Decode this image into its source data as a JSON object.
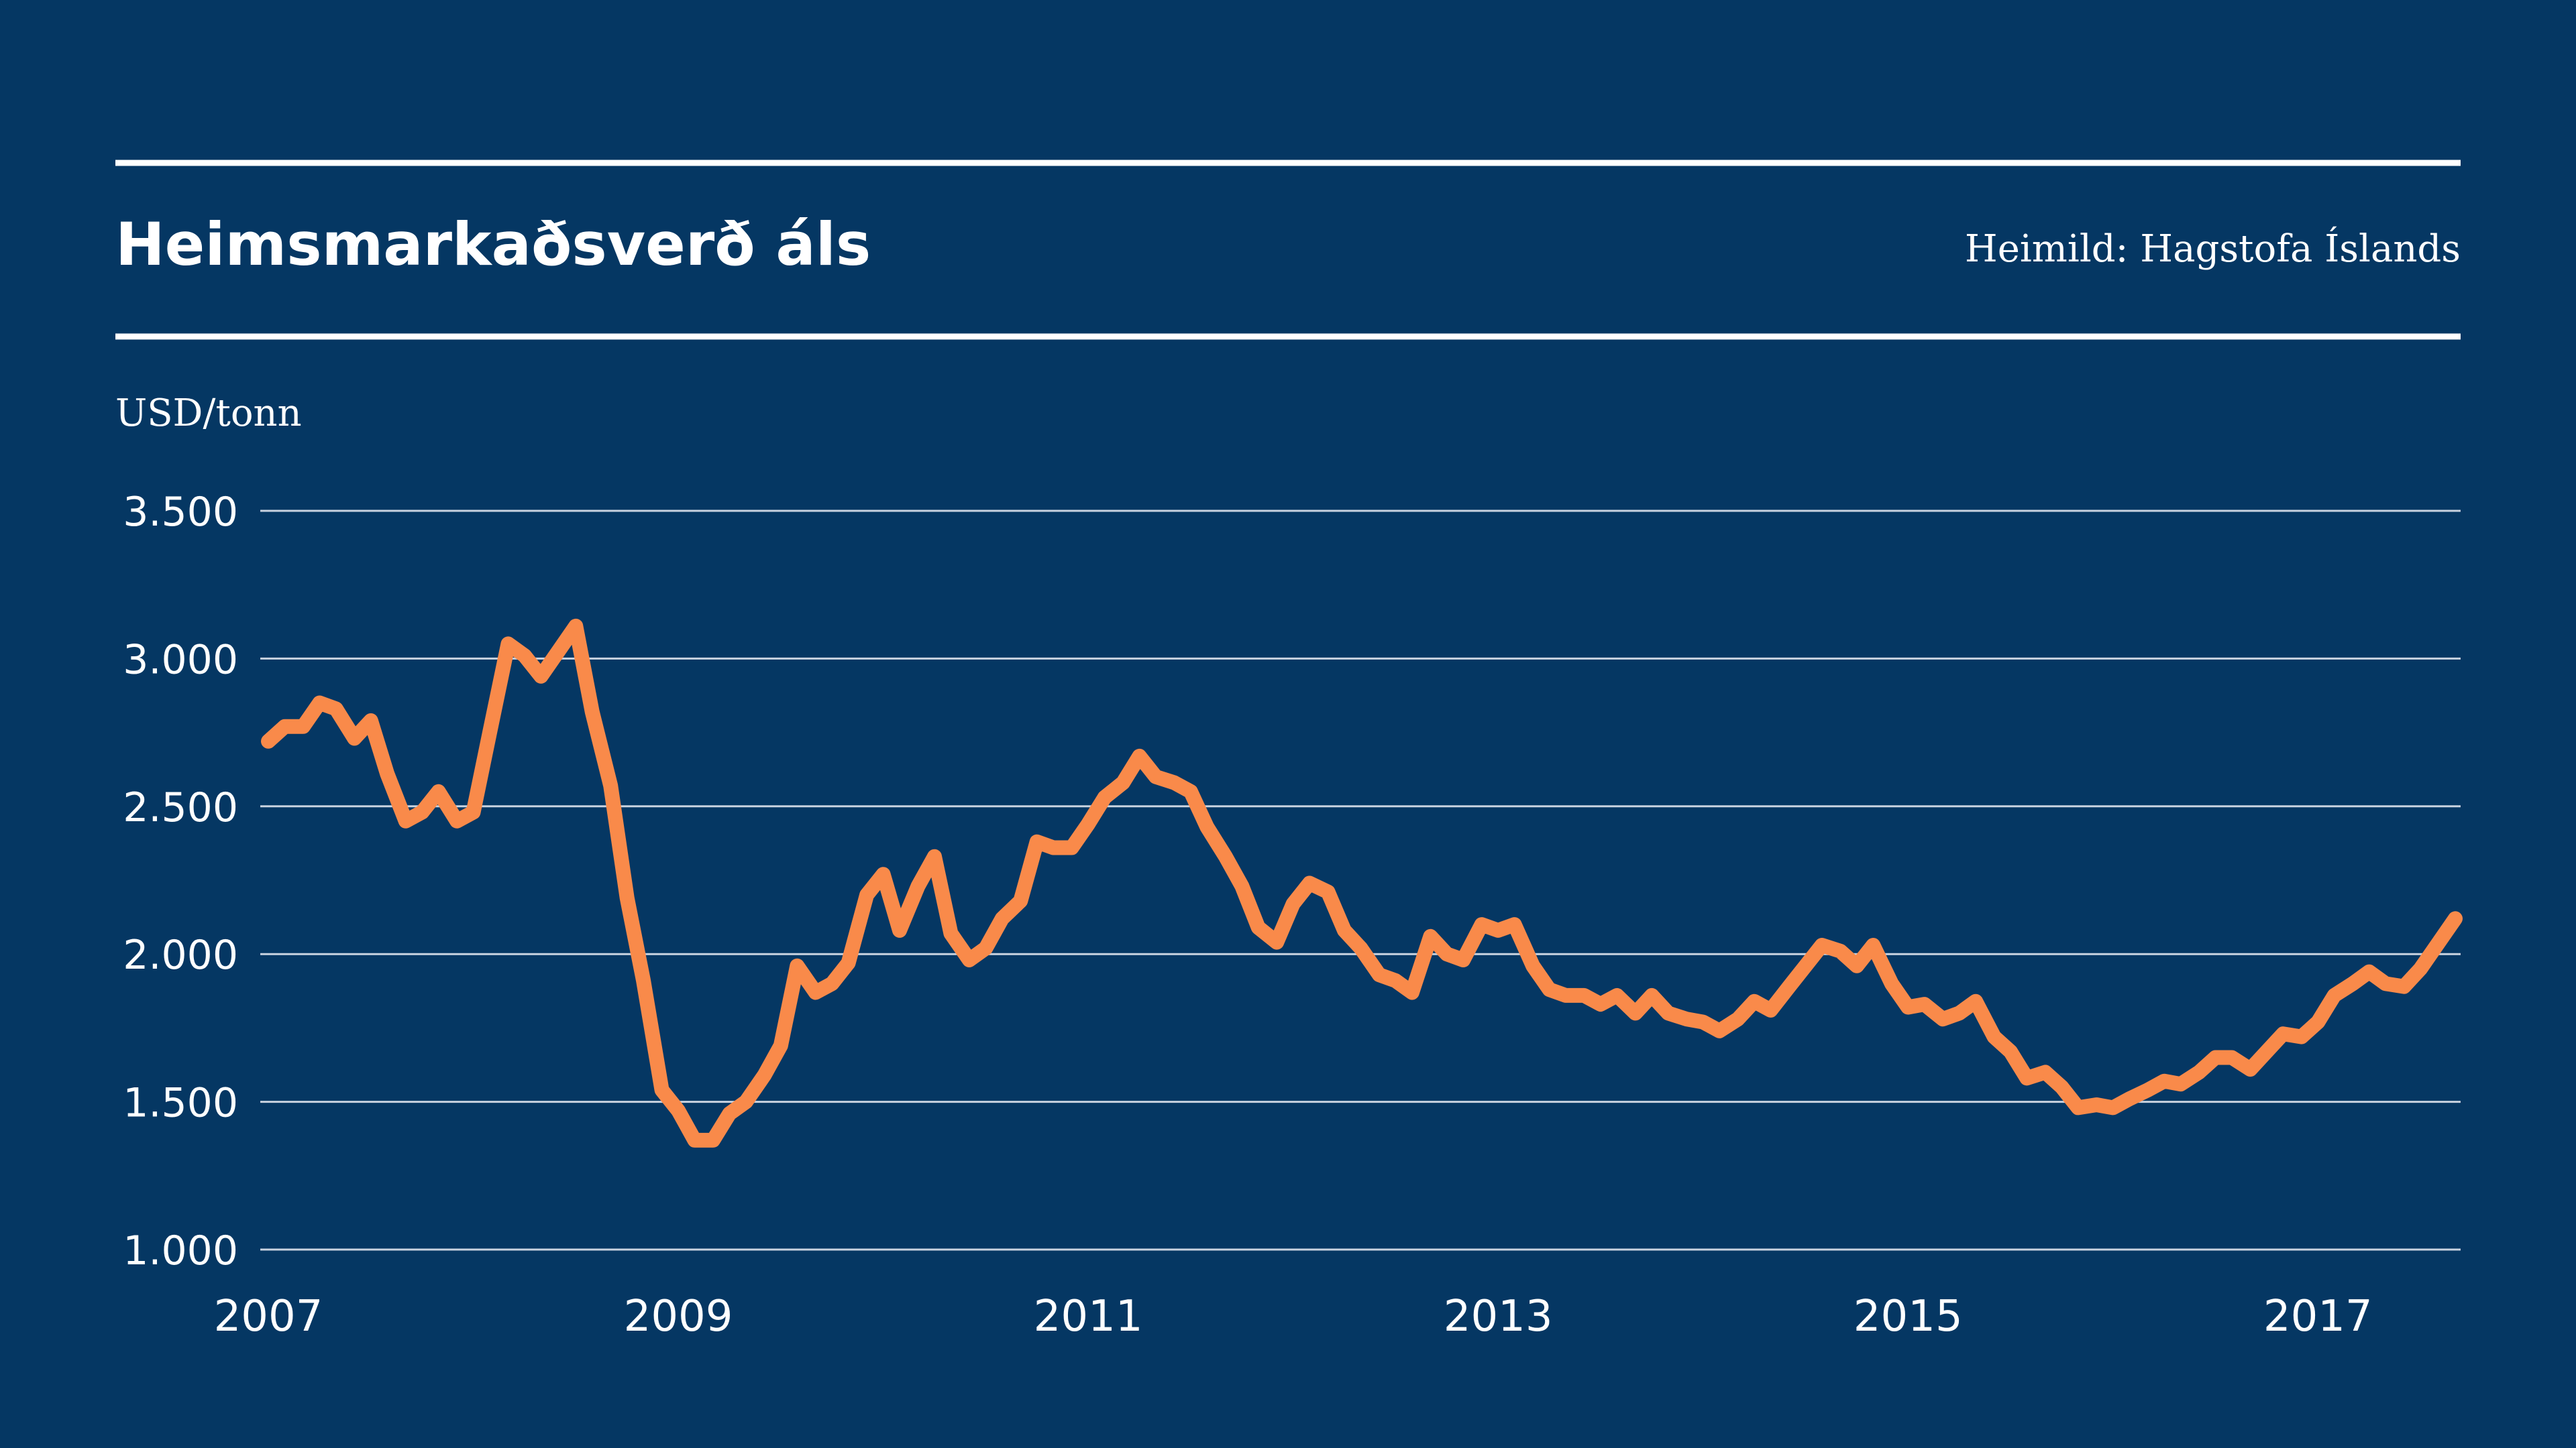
{
  "header": {
    "title": "Heimsmarkaðsverð áls",
    "source": "Heimild: Hagstofa Íslands"
  },
  "colors": {
    "background": "#053763",
    "text": "#ffffff",
    "rule": "#ffffff",
    "grid": "#c9d3e0",
    "line": "#f98a4a"
  },
  "chart_data": {
    "type": "line",
    "title": "Heimsmarkaðsverð áls",
    "source": "Heimild: Hagstofa Íslands",
    "unit_label": "USD/tonn",
    "xlabel": "",
    "ylabel": "",
    "grid": true,
    "legend": "none",
    "xlim": [
      2007.0,
      2017.67
    ],
    "ylim": [
      1000,
      3500
    ],
    "x_ticks": [
      2007,
      2009,
      2011,
      2013,
      2015,
      2017
    ],
    "x_tick_labels": [
      "2007",
      "2009",
      "2011",
      "2013",
      "2015",
      "2017"
    ],
    "y_ticks": [
      1000,
      1500,
      2000,
      2500,
      3000,
      3500
    ],
    "y_tick_labels": [
      "1.000",
      "1.500",
      "2.000",
      "2.500",
      "3.000",
      "3.500"
    ],
    "series": [
      {
        "name": "",
        "x": [
          2007.0,
          2007.08,
          2007.17,
          2007.25,
          2007.33,
          2007.42,
          2007.5,
          2007.58,
          2007.67,
          2007.75,
          2007.83,
          2007.92,
          2008.0,
          2008.08,
          2008.17,
          2008.25,
          2008.33,
          2008.42,
          2008.5,
          2008.58,
          2008.67,
          2008.75,
          2008.83,
          2008.92,
          2009.0,
          2009.08,
          2009.17,
          2009.25,
          2009.33,
          2009.42,
          2009.5,
          2009.58,
          2009.67,
          2009.75,
          2009.83,
          2009.92,
          2010.0,
          2010.08,
          2010.17,
          2010.25,
          2010.33,
          2010.42,
          2010.5,
          2010.58,
          2010.67,
          2010.75,
          2010.83,
          2010.92,
          2011.0,
          2011.08,
          2011.17,
          2011.25,
          2011.33,
          2011.42,
          2011.5,
          2011.58,
          2011.67,
          2011.75,
          2011.83,
          2011.92,
          2012.0,
          2012.08,
          2012.17,
          2012.25,
          2012.33,
          2012.42,
          2012.5,
          2012.58,
          2012.67,
          2012.75,
          2012.83,
          2012.92,
          2013.0,
          2013.08,
          2013.17,
          2013.25,
          2013.33,
          2013.42,
          2013.5,
          2013.58,
          2013.67,
          2013.75,
          2013.83,
          2013.92,
          2014.0,
          2014.08,
          2014.17,
          2014.25,
          2014.33,
          2014.42,
          2014.5,
          2014.58,
          2014.67,
          2014.75,
          2014.83,
          2014.92,
          2015.0,
          2015.08,
          2015.17,
          2015.25,
          2015.33,
          2015.42,
          2015.5,
          2015.58,
          2015.67,
          2015.75,
          2015.83,
          2015.92,
          2016.0,
          2016.08,
          2016.17,
          2016.25,
          2016.33,
          2016.42,
          2016.5,
          2016.58,
          2016.67,
          2016.75,
          2016.83,
          2016.92,
          2017.0,
          2017.08,
          2017.17,
          2017.25,
          2017.33,
          2017.42,
          2017.5,
          2017.58,
          2017.67
        ],
        "y": [
          2720,
          2770,
          2770,
          2850,
          2830,
          2730,
          2790,
          2610,
          2450,
          2480,
          2550,
          2450,
          2480,
          2750,
          3050,
          3010,
          2940,
          3030,
          3110,
          2820,
          2570,
          2190,
          1910,
          1540,
          1470,
          1370,
          1370,
          1460,
          1500,
          1590,
          1690,
          1960,
          1870,
          1900,
          1970,
          2200,
          2270,
          2080,
          2230,
          2330,
          2070,
          1980,
          2020,
          2120,
          2180,
          2380,
          2360,
          2360,
          2440,
          2530,
          2580,
          2670,
          2600,
          2580,
          2550,
          2430,
          2330,
          2230,
          2090,
          2040,
          2170,
          2240,
          2210,
          2080,
          2020,
          1930,
          1910,
          1870,
          2060,
          2000,
          1980,
          2100,
          2080,
          2100,
          1960,
          1880,
          1860,
          1860,
          1830,
          1860,
          1800,
          1860,
          1800,
          1780,
          1770,
          1740,
          1780,
          1840,
          1810,
          1890,
          1960,
          2030,
          2010,
          1960,
          2030,
          1900,
          1820,
          1830,
          1780,
          1800,
          1840,
          1720,
          1670,
          1580,
          1600,
          1550,
          1480,
          1490,
          1480,
          1510,
          1540,
          1570,
          1560,
          1600,
          1650,
          1650,
          1610,
          1670,
          1730,
          1720,
          1770,
          1860,
          1900,
          1940,
          1900,
          1890,
          1950,
          2030,
          2120
        ]
      }
    ]
  }
}
